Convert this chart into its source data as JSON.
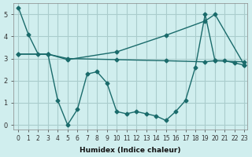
{
  "xlabel": "Humidex (Indice chaleur)",
  "ylabel": "",
  "bg_color": "#d0eeee",
  "grid_color": "#aacccc",
  "line_color": "#1a6b6b",
  "xlim": [
    0,
    23
  ],
  "ylim": [
    -0.2,
    5.5
  ],
  "yticks": [
    0,
    1,
    2,
    3,
    4,
    5
  ],
  "xticks": [
    0,
    1,
    2,
    3,
    4,
    5,
    6,
    7,
    8,
    9,
    10,
    11,
    12,
    13,
    14,
    15,
    16,
    17,
    18,
    19,
    20,
    21,
    22,
    23
  ],
  "series1_x": [
    0,
    1,
    2,
    3,
    4,
    5,
    6,
    7,
    8,
    9,
    10,
    11,
    12,
    13,
    14,
    15,
    16,
    17,
    18,
    19,
    20,
    21,
    22,
    23
  ],
  "series1_y": [
    5.3,
    4.1,
    3.2,
    3.2,
    1.1,
    0.0,
    0.7,
    2.3,
    2.4,
    1.9,
    0.6,
    0.5,
    0.6,
    0.5,
    0.4,
    0.2,
    0.6,
    1.1,
    2.6,
    5.0,
    2.9,
    2.9,
    2.8,
    2.7
  ],
  "series2_x": [
    0,
    3,
    5,
    10,
    15,
    19,
    20,
    23
  ],
  "series2_y": [
    3.2,
    3.2,
    3.0,
    2.95,
    2.9,
    2.85,
    2.9,
    2.85
  ],
  "series3_x": [
    0,
    3,
    5,
    10,
    15,
    19,
    20,
    23
  ],
  "series3_y": [
    3.2,
    3.2,
    2.95,
    3.3,
    4.05,
    4.7,
    5.0,
    2.7
  ]
}
